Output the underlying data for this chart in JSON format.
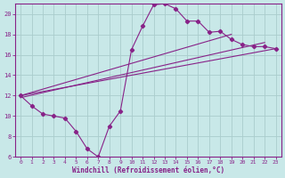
{
  "xlabel": "Windchill (Refroidissement éolien,°C)",
  "bg_color": "#c8e8e8",
  "line_color": "#882288",
  "grid_color": "#aacccc",
  "axis_color": "#882288",
  "xmin": -0.5,
  "xmax": 23.5,
  "ymin": 6,
  "ymax": 21,
  "yticks": [
    6,
    8,
    10,
    12,
    14,
    16,
    18,
    20
  ],
  "xticks": [
    0,
    1,
    2,
    3,
    4,
    5,
    6,
    7,
    8,
    9,
    10,
    11,
    12,
    13,
    14,
    15,
    16,
    17,
    18,
    19,
    20,
    21,
    22,
    23
  ],
  "main_x": [
    0,
    1,
    2,
    3,
    4,
    5,
    6,
    7,
    8,
    9,
    10,
    11,
    12,
    13,
    14,
    15,
    16,
    17,
    18,
    19,
    20,
    21,
    22,
    23
  ],
  "main_y": [
    12.0,
    11.0,
    10.2,
    10.0,
    9.8,
    8.5,
    6.8,
    6.0,
    9.0,
    10.5,
    16.5,
    18.8,
    20.9,
    21.0,
    20.5,
    19.3,
    19.3,
    18.2,
    18.3,
    17.5,
    17.0,
    16.8,
    16.8,
    16.6
  ],
  "trend1_x": [
    0,
    23
  ],
  "trend1_y": [
    12.0,
    16.6
  ],
  "trend2_x": [
    0,
    22
  ],
  "trend2_y": [
    11.8,
    17.2
  ],
  "trend3_x": [
    0,
    19
  ],
  "trend3_y": [
    12.0,
    18.0
  ]
}
